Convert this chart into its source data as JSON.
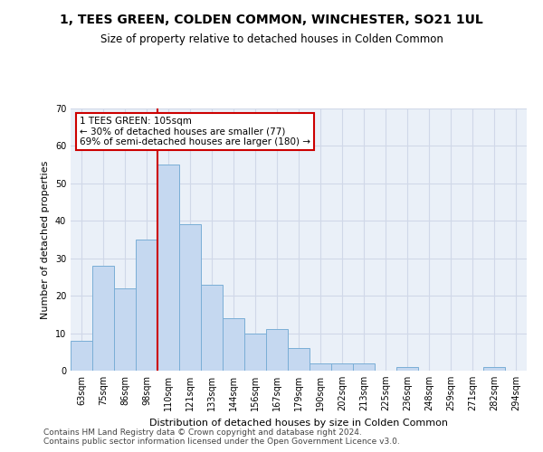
{
  "title": "1, TEES GREEN, COLDEN COMMON, WINCHESTER, SO21 1UL",
  "subtitle": "Size of property relative to detached houses in Colden Common",
  "xlabel": "Distribution of detached houses by size in Colden Common",
  "ylabel": "Number of detached properties",
  "categories": [
    "63sqm",
    "75sqm",
    "86sqm",
    "98sqm",
    "110sqm",
    "121sqm",
    "133sqm",
    "144sqm",
    "156sqm",
    "167sqm",
    "179sqm",
    "190sqm",
    "202sqm",
    "213sqm",
    "225sqm",
    "236sqm",
    "248sqm",
    "259sqm",
    "271sqm",
    "282sqm",
    "294sqm"
  ],
  "values": [
    8,
    28,
    22,
    35,
    55,
    39,
    23,
    14,
    10,
    11,
    6,
    2,
    2,
    2,
    0,
    1,
    0,
    0,
    0,
    1,
    0
  ],
  "bar_color": "#c5d8f0",
  "bar_edge_color": "#7aaed6",
  "vline_color": "#cc0000",
  "vline_x": 3.5,
  "annotation_text": "1 TEES GREEN: 105sqm\n← 30% of detached houses are smaller (77)\n69% of semi-detached houses are larger (180) →",
  "annotation_box_color": "#ffffff",
  "annotation_box_edge": "#cc0000",
  "ylim": [
    0,
    70
  ],
  "yticks": [
    0,
    10,
    20,
    30,
    40,
    50,
    60,
    70
  ],
  "grid_color": "#d0d8e8",
  "background_color": "#eaf0f8",
  "footer_line1": "Contains HM Land Registry data © Crown copyright and database right 2024.",
  "footer_line2": "Contains public sector information licensed under the Open Government Licence v3.0.",
  "title_fontsize": 10,
  "subtitle_fontsize": 8.5,
  "xlabel_fontsize": 8,
  "ylabel_fontsize": 8,
  "tick_fontsize": 7,
  "annotation_fontsize": 7.5,
  "footer_fontsize": 6.5
}
